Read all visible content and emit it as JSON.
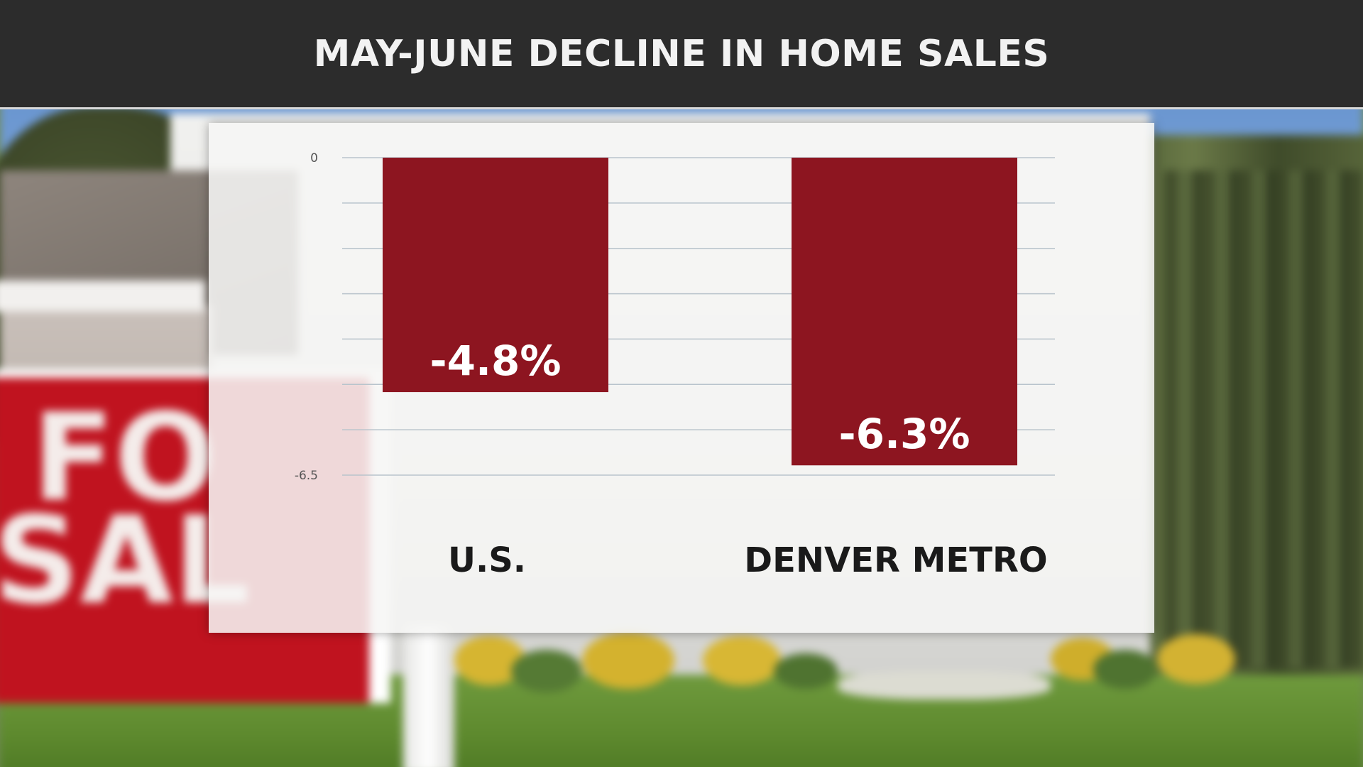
{
  "header": {
    "title": "MAY-JUNE DECLINE IN HOME SALES"
  },
  "background": {
    "sign_line1": "FO",
    "sign_line2": "SAL"
  },
  "colors": {
    "bar": "#8d1520",
    "bar_label": "#ffffff",
    "grid": "#b9c4cc",
    "category_label": "#1a1a1a",
    "header_bg": "#2c2c2c"
  },
  "chart_data": {
    "type": "bar",
    "title": "MAY-JUNE DECLINE IN HOME SALES",
    "categories": [
      "U.S.",
      "DENVER METRO"
    ],
    "values": [
      -4.8,
      -6.3
    ],
    "data_labels": [
      "-4.8%",
      "-6.3%"
    ],
    "ylim": [
      -6.5,
      0
    ],
    "yticks": [
      0,
      -6.5
    ],
    "ytick_labels": [
      "0",
      "-6.5"
    ],
    "grid": true,
    "xlabel": "",
    "ylabel": ""
  }
}
